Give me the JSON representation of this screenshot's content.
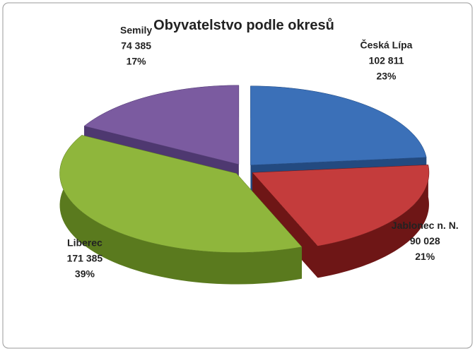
{
  "chart_data": {
    "type": "pie",
    "title": "Obyvatelstvo podle okresů",
    "categories": [
      "Česká Lípa",
      "Jablonec n. N.",
      "Liberec",
      "Semily"
    ],
    "values": [
      102811,
      90028,
      171385,
      74385
    ],
    "value_labels": [
      "102 811",
      "90 028",
      "171 385",
      "74 385"
    ],
    "percent_labels": [
      "23%",
      "21%",
      "39%",
      "17%"
    ],
    "colors": [
      "#3b70b8",
      "#c43c3c",
      "#8fb63c",
      "#7b5ba0"
    ],
    "side_colors": [
      "#234a80",
      "#6e1616",
      "#5a7a1e",
      "#4e3870"
    ],
    "exploded": true,
    "three_d": true
  }
}
